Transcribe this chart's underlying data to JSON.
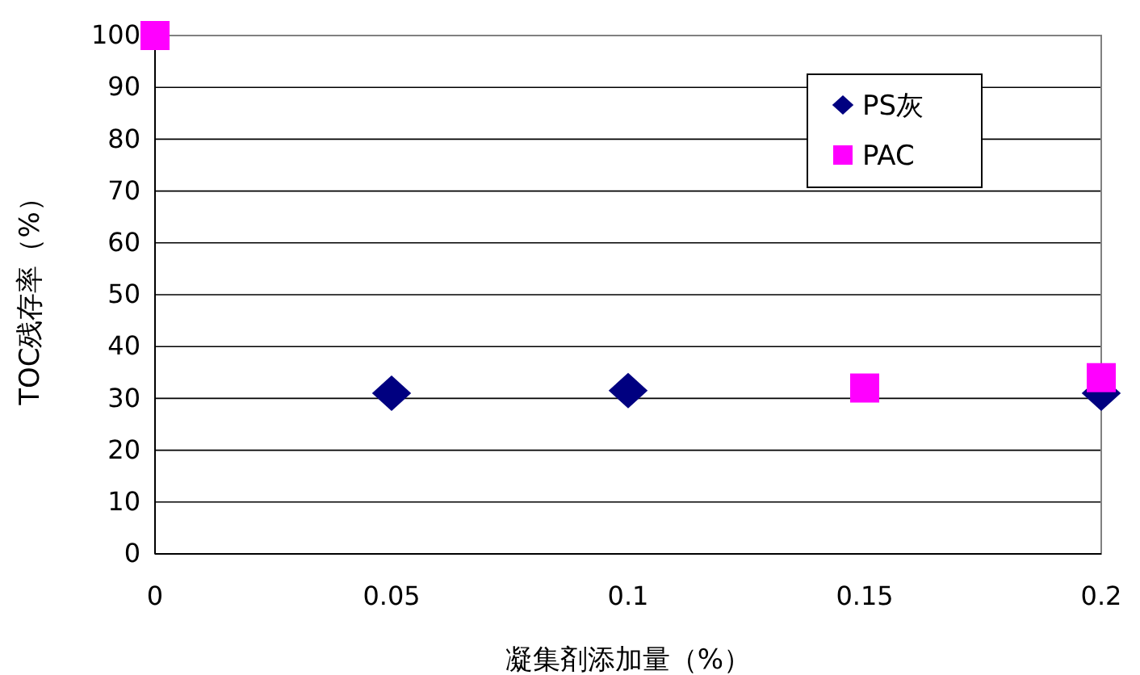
{
  "chart_data": {
    "type": "scatter",
    "xlabel": "凝集剤添加量（%）",
    "ylabel": "TOC残存率（%）",
    "xlim": [
      0,
      0.2
    ],
    "xticks": [
      0,
      0.05,
      0.1,
      0.15,
      0.2
    ],
    "ylim": [
      0,
      100
    ],
    "yticks": [
      0,
      10,
      20,
      30,
      40,
      50,
      60,
      70,
      80,
      90,
      100
    ],
    "grid": "y",
    "legend": "top right",
    "series": [
      {
        "name": "PS灰",
        "color": "#000080",
        "marker": "diamond",
        "x": [
          0.05,
          0.1,
          0.2
        ],
        "values": [
          31,
          31.5,
          31
        ]
      },
      {
        "name": "PAC",
        "color": "#ff00ff",
        "marker": "square",
        "x": [
          0,
          0.15,
          0.2
        ],
        "values": [
          100,
          32,
          34
        ]
      }
    ]
  }
}
